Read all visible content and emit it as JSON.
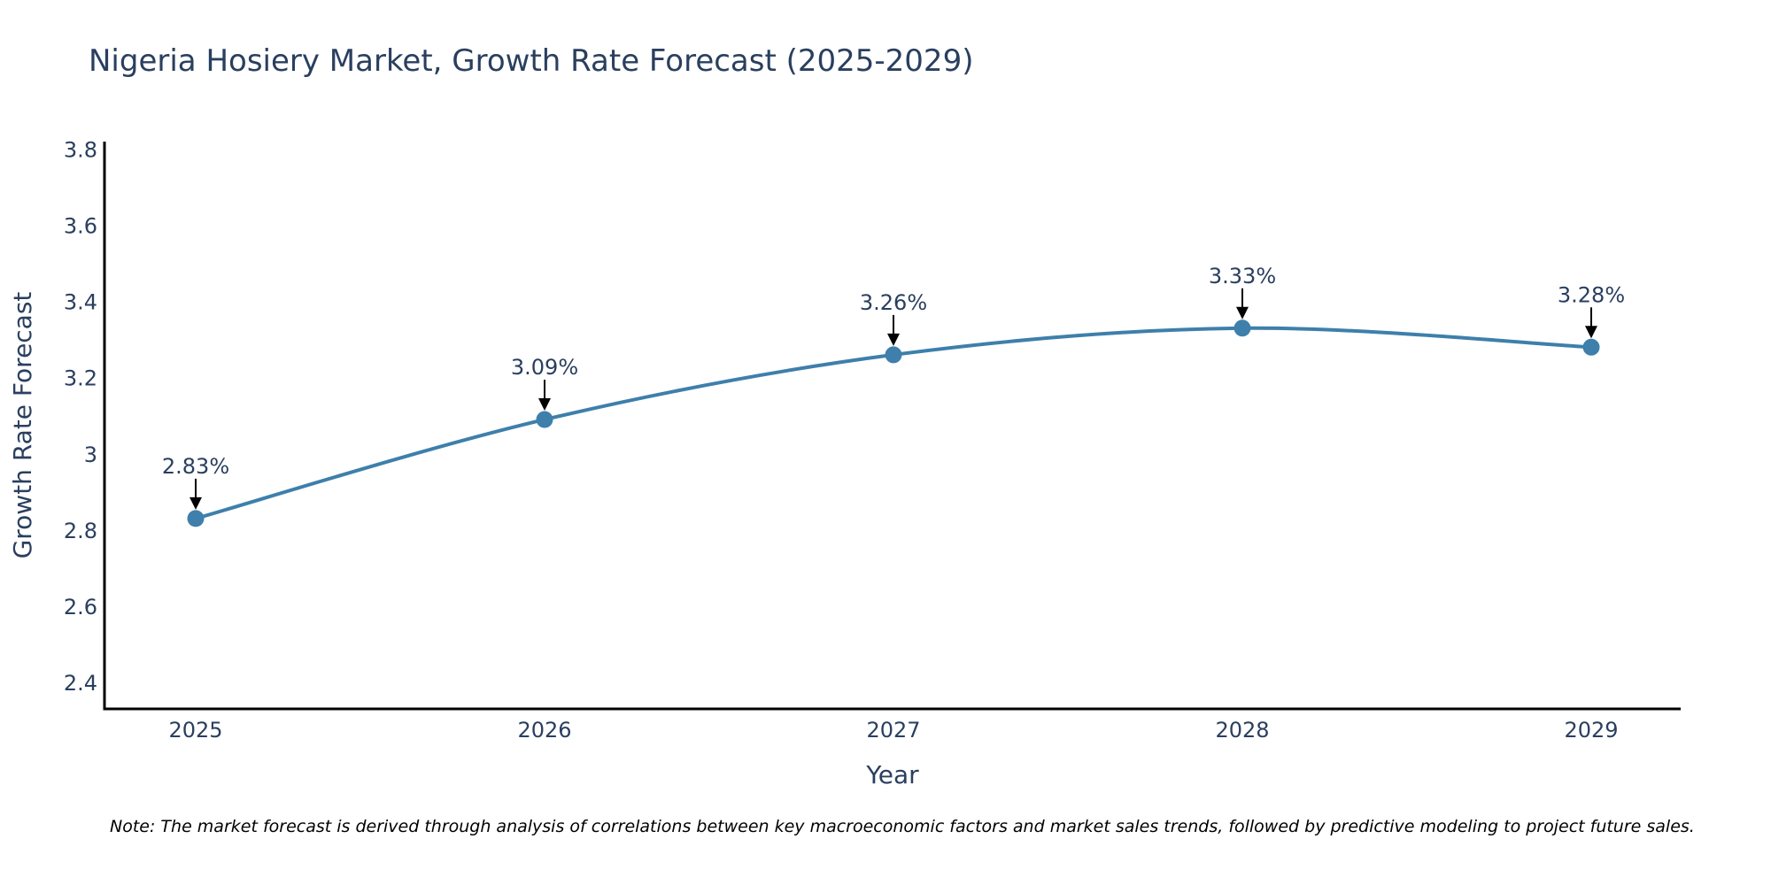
{
  "chart_data": {
    "type": "line",
    "title": "Nigeria Hosiery Market, Growth Rate Forecast (2025-2029)",
    "xlabel": "Year",
    "ylabel": "Growth Rate Forecast",
    "categories": [
      "2025",
      "2026",
      "2027",
      "2028",
      "2029"
    ],
    "series": [
      {
        "name": "Growth Rate Forecast",
        "values": [
          2.83,
          3.09,
          3.26,
          3.33,
          3.28
        ],
        "labels": [
          "2.83%",
          "3.09%",
          "3.26%",
          "3.33%",
          "3.28%"
        ]
      }
    ],
    "ylim": [
      2.33,
      3.82
    ],
    "yticks": [
      2.4,
      2.6,
      2.8,
      3,
      3.2,
      3.4,
      3.6,
      3.8
    ],
    "ytick_labels": [
      "2.4",
      "2.6",
      "2.8",
      "3",
      "3.2",
      "3.4",
      "3.6",
      "3.8"
    ],
    "grid": false,
    "line_color": "#3e7fab",
    "marker_color": "#3e7fab",
    "note": "Note: The market forecast is derived through analysis of correlations between key macroeconomic factors and market sales trends, followed by predictive modeling to project future sales."
  }
}
